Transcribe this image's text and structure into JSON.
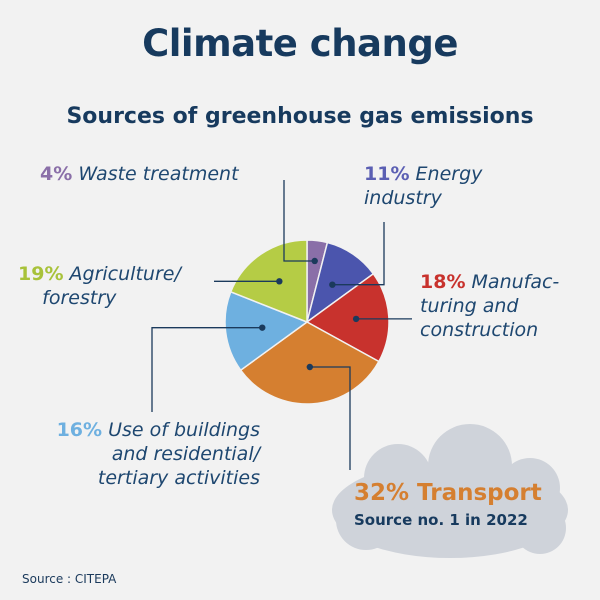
{
  "header": {
    "title": "Climate change",
    "subtitle": "Sources of greenhouse gas emissions"
  },
  "chart_data": {
    "type": "pie",
    "title": "Sources of greenhouse gas emissions",
    "slices": [
      {
        "label": "Waste treatment",
        "value": 4,
        "pct_text": "4%",
        "color": "#8a6fa8",
        "pct_color": "#8a6fa8"
      },
      {
        "label": "Energy industry",
        "value": 11,
        "pct_text": "11%",
        "color": "#4b55ad",
        "pct_color": "#5b5fb3"
      },
      {
        "label": "Manufac-\nturing and\nconstruction",
        "value": 18,
        "pct_text": "18%",
        "color": "#c8322d",
        "pct_color": "#c8322d"
      },
      {
        "label": "Transport",
        "value": 32,
        "pct_text": "32%",
        "color": "#d57f30",
        "pct_color": "#d57f30"
      },
      {
        "label": "Use of buildings\nand residential/\ntertiary activities",
        "value": 16,
        "pct_text": "16%",
        "color": "#6eb0e0",
        "pct_color": "#6eb0e0"
      },
      {
        "label": "Agriculture/\nforestry",
        "value": 19,
        "pct_text": "19%",
        "color": "#b5cc45",
        "pct_color": "#a8c23a"
      }
    ]
  },
  "callout": {
    "main": "32% Transport",
    "sub": "Source no. 1 in 2022"
  },
  "footer": {
    "source": "Source : CITEPA"
  }
}
